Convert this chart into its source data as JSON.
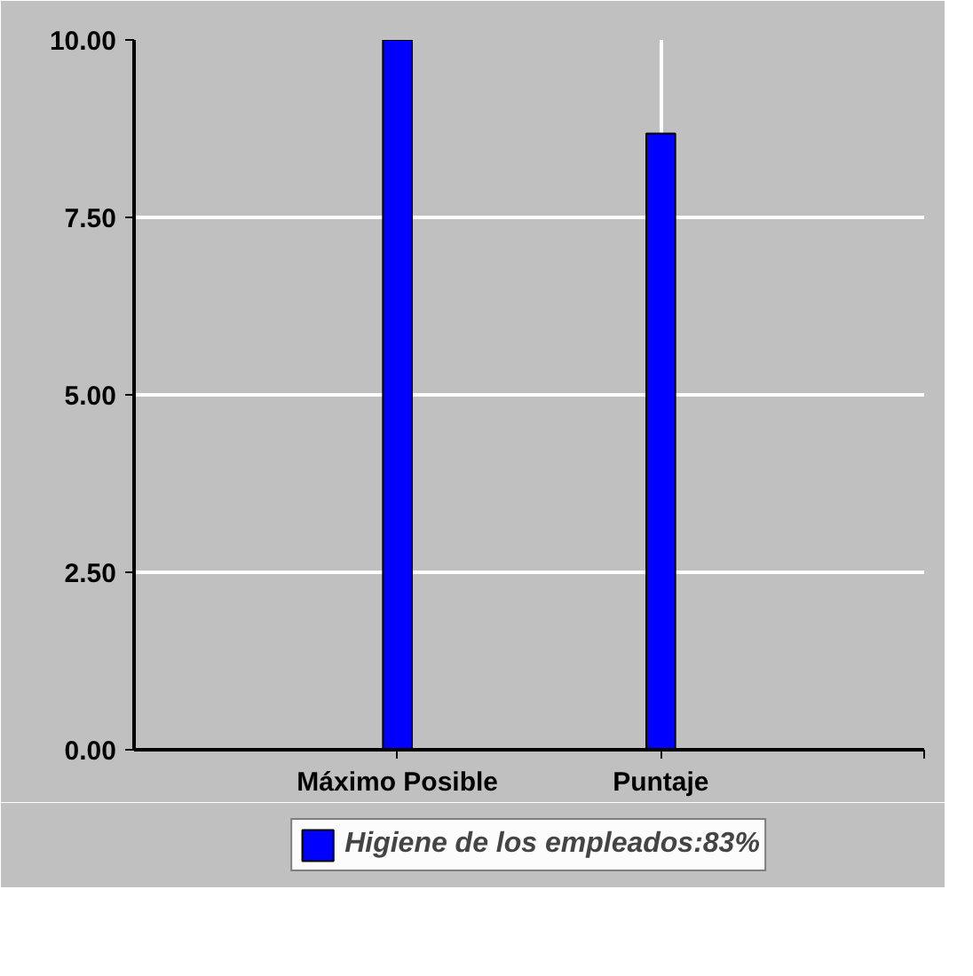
{
  "chart_data": {
    "type": "bar",
    "categories": [
      "Máximo Posible",
      "Puntaje"
    ],
    "series": [
      {
        "name": "Higiene de los empleados:83%",
        "color": "#0000ff",
        "values": [
          10.0,
          8.68
        ]
      }
    ],
    "ylim": [
      0,
      10
    ],
    "yticks": [
      {
        "value": 0,
        "label": "0.00"
      },
      {
        "value": 2.5,
        "label": "2.50"
      },
      {
        "value": 5,
        "label": "5.00"
      },
      {
        "value": 7.5,
        "label": "7.50"
      },
      {
        "value": 10,
        "label": "10.00"
      }
    ],
    "grid": true,
    "legend": "bottom"
  }
}
